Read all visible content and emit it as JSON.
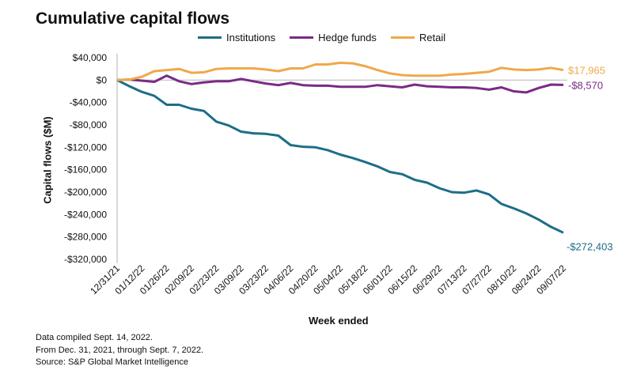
{
  "chart_data": {
    "type": "line",
    "title": "Cumulative capital flows",
    "xlabel": "Week ended",
    "ylabel": "Capital flows ($M)",
    "ylim": [
      -320000,
      40000
    ],
    "yticks": [
      40000,
      0,
      -40000,
      -80000,
      -120000,
      -160000,
      -200000,
      -240000,
      -280000,
      -320000
    ],
    "ytick_labels": [
      "$40,000",
      "$0",
      "-$40,000",
      "-$80,000",
      "-$120,000",
      "-$160,000",
      "-$200,000",
      "-$240,000",
      "-$280,000",
      "-$320,000"
    ],
    "x_tick_labels": [
      "12/31/21",
      "01/12/22",
      "01/26/22",
      "02/09/22",
      "02/23/22",
      "03/09/22",
      "03/23/22",
      "04/06/22",
      "04/20/22",
      "05/04/22",
      "05/18/22",
      "06/01/22",
      "06/15/22",
      "06/29/22",
      "07/13/22",
      "07/27/22",
      "08/10/22",
      "08/24/22",
      "09/07/22"
    ],
    "x": [
      "12/31/21",
      "01/05/22",
      "01/12/22",
      "01/19/22",
      "01/26/22",
      "02/02/22",
      "02/09/22",
      "02/16/22",
      "02/23/22",
      "03/02/22",
      "03/09/22",
      "03/16/22",
      "03/23/22",
      "03/30/22",
      "04/06/22",
      "04/13/22",
      "04/20/22",
      "04/27/22",
      "05/04/22",
      "05/11/22",
      "05/18/22",
      "05/25/22",
      "06/01/22",
      "06/08/22",
      "06/15/22",
      "06/22/22",
      "06/29/22",
      "07/06/22",
      "07/13/22",
      "07/20/22",
      "07/27/22",
      "08/03/22",
      "08/10/22",
      "08/17/22",
      "08/24/22",
      "08/31/22",
      "09/07/22"
    ],
    "legend_position": "top",
    "grid": false,
    "series": [
      {
        "name": "Institutions",
        "color": "#1d6e87",
        "end_label": "-$272,403",
        "values": [
          0,
          -11000,
          -21000,
          -28000,
          -44000,
          -44000,
          -51000,
          -55000,
          -74000,
          -81000,
          -92000,
          -95000,
          -96000,
          -99000,
          -116000,
          -119000,
          -120000,
          -125000,
          -133000,
          -139000,
          -146000,
          -154000,
          -164000,
          -168000,
          -178000,
          -183000,
          -193000,
          -200000,
          -201000,
          -197000,
          -204000,
          -221000,
          -229000,
          -238000,
          -249000,
          -262000,
          -272403
        ]
      },
      {
        "name": "Hedge funds",
        "color": "#7a2a85",
        "end_label": "-$8,570",
        "values": [
          0,
          1000,
          -1000,
          -3000,
          8000,
          -2000,
          -7000,
          -4000,
          -2000,
          -2000,
          2000,
          -2000,
          -6000,
          -9000,
          -5000,
          -9000,
          -10000,
          -10000,
          -12000,
          -12000,
          -12000,
          -9000,
          -11000,
          -13000,
          -8000,
          -11000,
          -12000,
          -13000,
          -13000,
          -14000,
          -17000,
          -13000,
          -20000,
          -22000,
          -14000,
          -8000,
          -8570
        ]
      },
      {
        "name": "Retail",
        "color": "#f0a849",
        "end_label": "$17,965",
        "values": [
          0,
          1000,
          6000,
          16000,
          18000,
          20000,
          13000,
          14000,
          20000,
          21000,
          21000,
          21000,
          19000,
          16000,
          21000,
          21000,
          28000,
          28000,
          31000,
          30000,
          25000,
          18000,
          12000,
          9000,
          8000,
          8000,
          8000,
          10000,
          11000,
          13000,
          15000,
          22000,
          19000,
          18000,
          19000,
          22000,
          17965
        ]
      }
    ]
  },
  "footnotes": [
    "Data compiled Sept. 14, 2022.",
    "From Dec. 31, 2021, through Sept. 7, 2022.",
    "Source: S&P Global Market Intelligence"
  ]
}
